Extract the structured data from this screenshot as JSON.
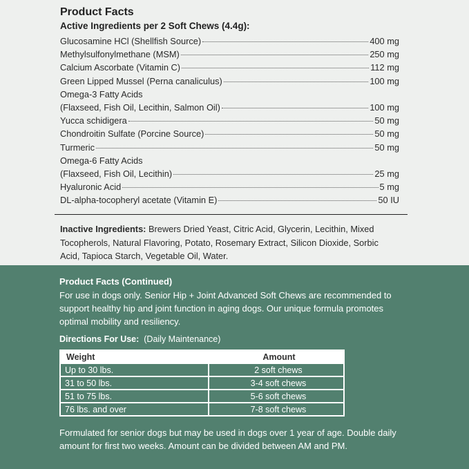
{
  "facts": {
    "title": "Product Facts",
    "subtitle": "Active Ingredients per 2 Soft Chews (4.4g):",
    "ingredients": [
      {
        "name": "Glucosamine HCl (Shellfish Source)",
        "amount": "400 mg"
      },
      {
        "name": "Methylsulfonylmethane (MSM)",
        "amount": "250 mg"
      },
      {
        "name": "Calcium Ascorbate (Vitamin C)",
        "amount": "112 mg"
      },
      {
        "name": "Green Lipped Mussel (Perna canaliculus)",
        "amount": "100 mg"
      },
      {
        "name": "Omega-3 Fatty Acids",
        "amount": ""
      },
      {
        "name": "(Flaxseed, Fish Oil, Lecithin, Salmon Oil)",
        "amount": "100 mg"
      },
      {
        "name": "Yucca schidigera",
        "amount": "50 mg"
      },
      {
        "name": "Chondroitin Sulfate (Porcine Source)",
        "amount": "50 mg"
      },
      {
        "name": "Turmeric",
        "amount": "50 mg"
      },
      {
        "name": "Omega-6 Fatty Acids",
        "amount": ""
      },
      {
        "name": "(Flaxseed, Fish Oil, Lecithin)",
        "amount": "25 mg"
      },
      {
        "name": "Hyaluronic Acid",
        "amount": "5 mg"
      },
      {
        "name": "DL-alpha-tocopheryl acetate (Vitamin E)",
        "amount": "50 IU"
      }
    ],
    "inactive_label": "Inactive Ingredients:",
    "inactive_text": " Brewers Dried Yeast, Citric Acid, Glycerin, Lecithin, Mixed Tocopherols, Natural Flavoring, Potato, Rosemary Extract, Silicon Dioxide, Sorbic Acid, Tapioca Starch, Vegetable Oil, Water."
  },
  "continued": {
    "title": "Product Facts (Continued)",
    "body": "For use in dogs only. Senior Hip + Joint Advanced Soft Chews are recommended to support healthy hip and joint function in aging dogs. Our unique formula promotes optimal mobility and resiliency.",
    "directions_label": "Directions For Use:",
    "directions_note": "(Daily Maintenance)",
    "table": {
      "headers": [
        "Weight",
        "Amount"
      ],
      "rows": [
        [
          "Up to 30 lbs.",
          "2 soft chews"
        ],
        [
          "31 to 50 lbs.",
          "3-4 soft chews"
        ],
        [
          "51 to 75 lbs.",
          "5-6 soft chews"
        ],
        [
          "76 lbs. and over",
          "7-8 soft chews"
        ]
      ]
    },
    "footer": "Formulated for senior dogs but may be used in dogs over 1 year of age. Double daily amount for first two weeks. Amount can be divided between AM and PM."
  },
  "colors": {
    "background": "#eef0ee",
    "green": "#52806f"
  }
}
